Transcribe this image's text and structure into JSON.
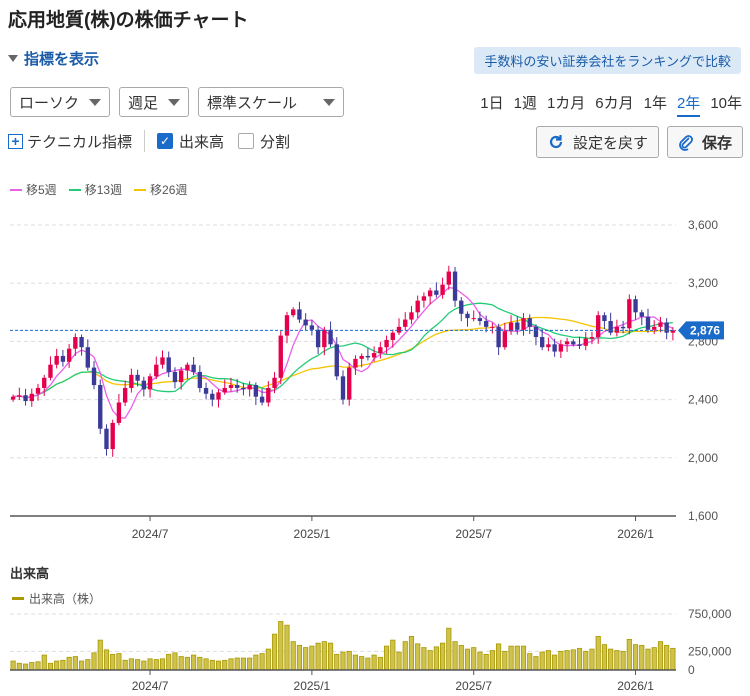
{
  "title": "応用地質(株)の株価チャート",
  "indicator_toggle": "指標を表示",
  "broker_banner": "手数料の安い証券会社をランキングで比較",
  "controls": {
    "chart_type": "ローソク",
    "interval": "週足",
    "scale": "標準スケール"
  },
  "periods": [
    {
      "label": "1日",
      "active": false
    },
    {
      "label": "1週",
      "active": false
    },
    {
      "label": "1カ月",
      "active": false
    },
    {
      "label": "6カ月",
      "active": false
    },
    {
      "label": "1年",
      "active": false
    },
    {
      "label": "2年",
      "active": true
    },
    {
      "label": "10年",
      "active": false
    }
  ],
  "options": {
    "technical": "テクニカル指標",
    "volume": "出来高",
    "split": "分割",
    "reset": "設定を戻す",
    "save": "保存"
  },
  "colors": {
    "up": "#e6004c",
    "down": "#3a3a99",
    "ma5": "#ec5fec",
    "ma13": "#22cc77",
    "ma26": "#f5c400",
    "volume": "#aa9900",
    "current": "#1a6ac9"
  },
  "chart_data": {
    "type": "candlestick",
    "legend": [
      {
        "label": "移5週",
        "color": "#ec5fec"
      },
      {
        "label": "移13週",
        "color": "#22cc77"
      },
      {
        "label": "移26週",
        "color": "#f5c400"
      }
    ],
    "ylim": [
      1600,
      3600
    ],
    "yticks": [
      "3,600",
      "3,200",
      "2,800",
      "2,400",
      "2,000",
      "1,600"
    ],
    "xticks": [
      "2024/7",
      "2025/1",
      "2025/7",
      "2026/1"
    ],
    "current_price": 2876,
    "current_label": "2,876",
    "closes": [
      2420,
      2430,
      2390,
      2440,
      2480,
      2550,
      2640,
      2700,
      2660,
      2750,
      2830,
      2760,
      2620,
      2500,
      2200,
      2060,
      2240,
      2380,
      2480,
      2570,
      2530,
      2470,
      2560,
      2640,
      2690,
      2590,
      2520,
      2600,
      2640,
      2590,
      2480,
      2440,
      2400,
      2450,
      2480,
      2500,
      2480,
      2470,
      2500,
      2420,
      2380,
      2480,
      2550,
      2840,
      2980,
      3020,
      2950,
      2910,
      2880,
      2760,
      2880,
      2780,
      2560,
      2400,
      2620,
      2680,
      2700,
      2690,
      2720,
      2760,
      2810,
      2860,
      2900,
      2950,
      3000,
      3080,
      3110,
      3150,
      3120,
      3190,
      3280,
      3080,
      2990,
      2960,
      2960,
      2940,
      2900,
      2900,
      2760,
      2870,
      2930,
      2880,
      2960,
      2900,
      2830,
      2760,
      2780,
      2730,
      2780,
      2800,
      2780,
      2770,
      2820,
      2830,
      2980,
      2940,
      2860,
      2900,
      2890,
      3090,
      3000,
      2970,
      2880,
      2900,
      2930,
      2860,
      2876
    ],
    "volumes": [
      120000,
      90000,
      80000,
      100000,
      110000,
      200000,
      90000,
      120000,
      130000,
      170000,
      180000,
      120000,
      140000,
      230000,
      400000,
      270000,
      210000,
      220000,
      130000,
      150000,
      140000,
      120000,
      150000,
      140000,
      150000,
      210000,
      230000,
      180000,
      170000,
      200000,
      170000,
      150000,
      130000,
      120000,
      130000,
      150000,
      160000,
      160000,
      160000,
      200000,
      220000,
      280000,
      480000,
      650000,
      600000,
      380000,
      330000,
      300000,
      320000,
      360000,
      380000,
      360000,
      210000,
      240000,
      250000,
      200000,
      180000,
      160000,
      200000,
      170000,
      320000,
      400000,
      240000,
      380000,
      450000,
      350000,
      300000,
      260000,
      310000,
      360000,
      560000,
      380000,
      330000,
      280000,
      300000,
      240000,
      210000,
      260000,
      350000,
      250000,
      320000,
      320000,
      320000,
      220000,
      180000,
      240000,
      260000,
      200000,
      250000,
      260000,
      270000,
      290000,
      250000,
      280000,
      450000,
      340000,
      280000,
      260000,
      250000,
      410000,
      340000,
      330000,
      280000,
      300000,
      380000,
      330000,
      290000
    ],
    "volume_axis": {
      "ylim": [
        0,
        750000
      ],
      "yticks": [
        "750,000",
        "250,000",
        "0"
      ],
      "label": "出来高（株）"
    },
    "volume_title": "出来高"
  }
}
